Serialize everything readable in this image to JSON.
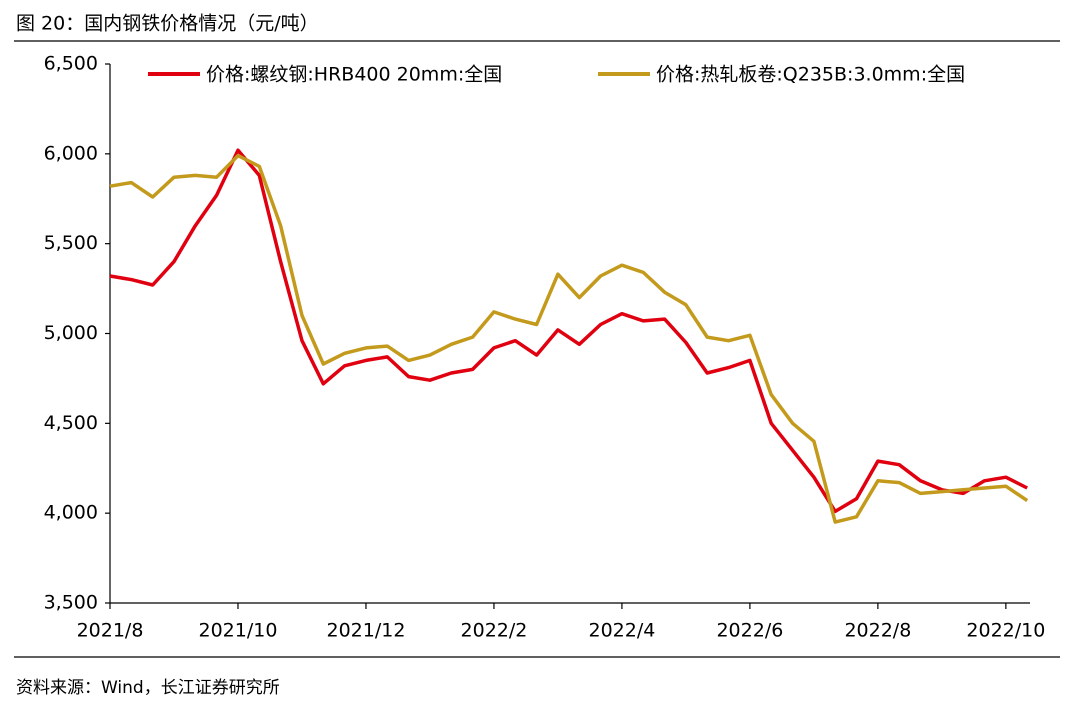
{
  "title": "图 20：国内钢铁价格情况（元/吨）",
  "source": "资料来源：Wind，长江证券研究所",
  "chart_data": {
    "type": "line",
    "categories": [
      "2021/8",
      null,
      null,
      null,
      null,
      null,
      "2021/10",
      null,
      null,
      null,
      null,
      null,
      "2021/12",
      null,
      null,
      null,
      null,
      null,
      "2022/2",
      null,
      null,
      null,
      null,
      null,
      "2022/4",
      null,
      null,
      null,
      null,
      null,
      "2022/6",
      null,
      null,
      null,
      null,
      null,
      "2022/8",
      null,
      null,
      null,
      null,
      null,
      "2022/10",
      null
    ],
    "series": [
      {
        "name": "价格:螺纹钢:HRB400 20mm:全国",
        "color": "#e0000f",
        "values": [
          5320,
          5300,
          5270,
          5400,
          5600,
          5770,
          6020,
          5880,
          5400,
          4960,
          4720,
          4820,
          4850,
          4870,
          4760,
          4740,
          4780,
          4800,
          4920,
          4960,
          4880,
          5020,
          4940,
          5050,
          5110,
          5070,
          5080,
          4950,
          4780,
          4810,
          4850,
          4500,
          4350,
          4200,
          4010,
          4080,
          4290,
          4270,
          4180,
          4130,
          4110,
          4180,
          4200,
          4140
        ]
      },
      {
        "name": "价格:热轧板卷:Q235B:3.0mm:全国",
        "color": "#c49a1c",
        "values": [
          5820,
          5840,
          5760,
          5870,
          5880,
          5870,
          5990,
          5930,
          5600,
          5100,
          4830,
          4890,
          4920,
          4930,
          4850,
          4880,
          4940,
          4980,
          5120,
          5080,
          5050,
          5330,
          5200,
          5320,
          5380,
          5340,
          5230,
          5160,
          4980,
          4960,
          4990,
          4660,
          4500,
          4400,
          3950,
          3980,
          4180,
          4170,
          4110,
          4120,
          4130,
          4140,
          4150,
          4070
        ]
      }
    ],
    "ylim": [
      3500,
      6500
    ],
    "yticks": [
      {
        "value": 3500,
        "label": "3,500"
      },
      {
        "value": 4000,
        "label": "4,000"
      },
      {
        "value": 4500,
        "label": "4,500"
      },
      {
        "value": 5000,
        "label": "5,000"
      },
      {
        "value": 5500,
        "label": "5,500"
      },
      {
        "value": 6000,
        "label": "6,000"
      },
      {
        "value": 6500,
        "label": "6,500"
      }
    ],
    "grid": false,
    "legend": "top"
  }
}
